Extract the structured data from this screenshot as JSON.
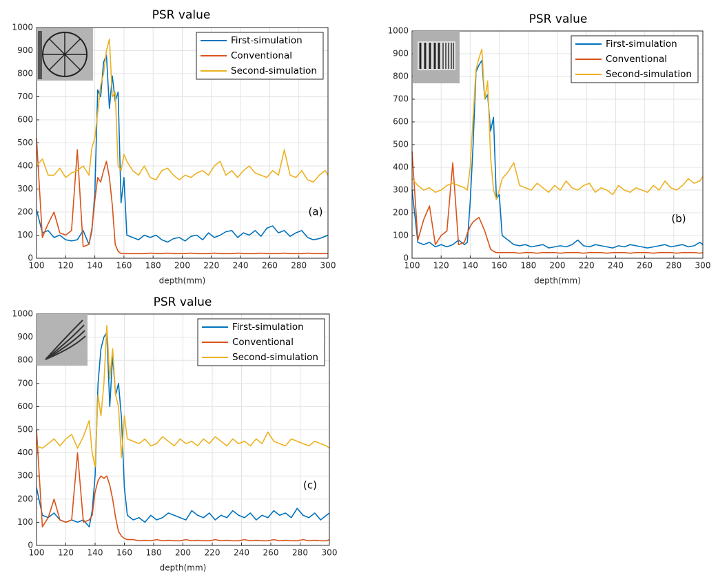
{
  "chart_data": [
    {
      "type": "line",
      "title": "PSR value",
      "xlabel": "depth(mm)",
      "annotation": "(a)",
      "x": [
        100,
        104,
        108,
        112,
        116,
        120,
        124,
        128,
        132,
        136,
        138,
        140,
        142,
        144,
        146,
        148,
        150,
        152,
        154,
        156,
        158,
        160,
        162,
        166,
        170,
        174,
        178,
        182,
        186,
        190,
        194,
        198,
        202,
        206,
        210,
        214,
        218,
        222,
        226,
        230,
        234,
        238,
        242,
        246,
        250,
        254,
        258,
        262,
        266,
        270,
        274,
        278,
        282,
        286,
        290,
        294,
        298,
        300
      ],
      "series": [
        {
          "name": "First-simulation",
          "color": "#0072BD",
          "values": [
            210,
            110,
            120,
            90,
            100,
            80,
            75,
            80,
            120,
            60,
            120,
            280,
            730,
            700,
            850,
            880,
            650,
            790,
            680,
            720,
            240,
            350,
            100,
            90,
            80,
            100,
            90,
            100,
            80,
            70,
            85,
            90,
            75,
            95,
            100,
            80,
            110,
            90,
            100,
            115,
            120,
            90,
            110,
            100,
            120,
            95,
            130,
            140,
            110,
            120,
            95,
            110,
            120,
            90,
            80,
            85,
            95,
            100
          ]
        },
        {
          "name": "Conventional",
          "color": "#D95319",
          "values": [
            520,
            90,
            150,
            200,
            110,
            100,
            120,
            470,
            50,
            60,
            130,
            250,
            350,
            330,
            380,
            420,
            350,
            230,
            60,
            30,
            20,
            20,
            20,
            20,
            20,
            20,
            22,
            20,
            20,
            22,
            20,
            20,
            20,
            22,
            20,
            20,
            20,
            22,
            20,
            20,
            20,
            22,
            20,
            20,
            20,
            22,
            20,
            20,
            20,
            22,
            20,
            20,
            20,
            22,
            20,
            20,
            20,
            20
          ]
        },
        {
          "name": "Second-simulation",
          "color": "#EDB120",
          "values": [
            400,
            430,
            360,
            360,
            390,
            350,
            370,
            380,
            400,
            360,
            480,
            520,
            630,
            750,
            800,
            900,
            950,
            700,
            720,
            400,
            380,
            450,
            420,
            380,
            360,
            400,
            350,
            340,
            380,
            390,
            360,
            340,
            360,
            350,
            370,
            380,
            360,
            400,
            420,
            360,
            380,
            350,
            380,
            400,
            370,
            360,
            350,
            380,
            360,
            470,
            360,
            350,
            380,
            340,
            330,
            360,
            380,
            360
          ]
        }
      ],
      "xlim": [
        100,
        300
      ],
      "ylim": [
        0,
        1000
      ],
      "xticks": [
        100,
        120,
        140,
        160,
        180,
        200,
        220,
        240,
        260,
        280,
        300
      ],
      "yticks": [
        0,
        100,
        200,
        300,
        400,
        500,
        600,
        700,
        800,
        900,
        1000
      ],
      "grid": true,
      "legend": "upper-right"
    },
    {
      "type": "line",
      "title": "PSR value",
      "xlabel": "depth(mm)",
      "annotation": "(b)",
      "x": [
        100,
        104,
        108,
        112,
        116,
        120,
        124,
        128,
        132,
        136,
        138,
        140,
        142,
        144,
        146,
        148,
        150,
        152,
        154,
        156,
        158,
        160,
        162,
        166,
        170,
        174,
        178,
        182,
        186,
        190,
        194,
        198,
        202,
        206,
        210,
        214,
        218,
        222,
        226,
        230,
        234,
        238,
        242,
        246,
        250,
        254,
        258,
        262,
        266,
        270,
        274,
        278,
        282,
        286,
        290,
        294,
        298,
        300
      ],
      "series": [
        {
          "name": "First-simulation",
          "color": "#0072BD",
          "values": [
            300,
            70,
            60,
            70,
            50,
            60,
            50,
            60,
            80,
            60,
            70,
            250,
            500,
            820,
            850,
            870,
            700,
            720,
            560,
            620,
            260,
            280,
            100,
            80,
            60,
            55,
            60,
            50,
            55,
            60,
            45,
            50,
            55,
            50,
            60,
            80,
            55,
            50,
            60,
            55,
            50,
            45,
            55,
            50,
            60,
            55,
            50,
            45,
            50,
            55,
            60,
            50,
            55,
            60,
            50,
            55,
            70,
            60
          ]
        },
        {
          "name": "Conventional",
          "color": "#D95319",
          "values": [
            470,
            80,
            170,
            230,
            60,
            100,
            120,
            420,
            60,
            70,
            110,
            140,
            160,
            170,
            180,
            150,
            120,
            80,
            40,
            30,
            25,
            25,
            25,
            25,
            25,
            22,
            25,
            25,
            22,
            25,
            25,
            25,
            22,
            25,
            25,
            25,
            22,
            25,
            25,
            25,
            22,
            25,
            25,
            25,
            22,
            25,
            25,
            25,
            22,
            25,
            25,
            25,
            22,
            25,
            25,
            25,
            22,
            25
          ]
        },
        {
          "name": "Second-simulation",
          "color": "#EDB120",
          "values": [
            350,
            320,
            300,
            310,
            290,
            300,
            320,
            330,
            320,
            310,
            300,
            400,
            620,
            830,
            880,
            920,
            700,
            780,
            450,
            300,
            260,
            300,
            350,
            380,
            420,
            320,
            310,
            300,
            330,
            310,
            290,
            320,
            300,
            340,
            310,
            300,
            320,
            330,
            290,
            310,
            300,
            280,
            320,
            300,
            290,
            310,
            300,
            290,
            320,
            300,
            340,
            310,
            300,
            320,
            350,
            330,
            340,
            360
          ]
        }
      ],
      "xlim": [
        100,
        300
      ],
      "ylim": [
        0,
        1000
      ],
      "xticks": [
        100,
        120,
        140,
        160,
        180,
        200,
        220,
        240,
        260,
        280,
        300
      ],
      "yticks": [
        0,
        100,
        200,
        300,
        400,
        500,
        600,
        700,
        800,
        900,
        1000
      ],
      "grid": true,
      "legend": "upper-right"
    },
    {
      "type": "line",
      "title": "PSR value",
      "xlabel": "depth(mm)",
      "annotation": "(c)",
      "x": [
        100,
        104,
        108,
        112,
        116,
        120,
        124,
        128,
        132,
        136,
        138,
        140,
        142,
        144,
        146,
        148,
        150,
        152,
        154,
        156,
        158,
        160,
        162,
        166,
        170,
        174,
        178,
        182,
        186,
        190,
        194,
        198,
        202,
        206,
        210,
        214,
        218,
        222,
        226,
        230,
        234,
        238,
        242,
        246,
        250,
        254,
        258,
        262,
        266,
        270,
        274,
        278,
        282,
        286,
        290,
        294,
        298,
        300
      ],
      "series": [
        {
          "name": "First-simulation",
          "color": "#0072BD",
          "values": [
            250,
            130,
            120,
            140,
            110,
            100,
            110,
            100,
            110,
            80,
            150,
            300,
            700,
            850,
            900,
            920,
            600,
            820,
            650,
            700,
            550,
            250,
            130,
            110,
            120,
            100,
            130,
            110,
            120,
            140,
            130,
            120,
            110,
            150,
            130,
            120,
            140,
            110,
            130,
            120,
            150,
            130,
            120,
            140,
            110,
            130,
            120,
            150,
            130,
            140,
            120,
            160,
            130,
            120,
            140,
            110,
            130,
            140
          ]
        },
        {
          "name": "Conventional",
          "color": "#D95319",
          "values": [
            500,
            80,
            120,
            200,
            110,
            100,
            110,
            400,
            100,
            110,
            130,
            230,
            280,
            300,
            290,
            300,
            260,
            200,
            120,
            60,
            40,
            30,
            25,
            25,
            20,
            22,
            20,
            25,
            20,
            22,
            20,
            20,
            25,
            20,
            22,
            20,
            20,
            25,
            20,
            22,
            20,
            20,
            25,
            20,
            22,
            20,
            20,
            25,
            20,
            22,
            20,
            20,
            25,
            20,
            22,
            20,
            20,
            25
          ]
        },
        {
          "name": "Second-simulation",
          "color": "#EDB120",
          "values": [
            430,
            420,
            440,
            460,
            430,
            460,
            480,
            420,
            470,
            540,
            400,
            340,
            650,
            560,
            700,
            950,
            720,
            850,
            650,
            600,
            380,
            560,
            460,
            450,
            440,
            460,
            430,
            440,
            470,
            450,
            430,
            460,
            440,
            450,
            430,
            460,
            440,
            470,
            450,
            430,
            460,
            440,
            450,
            430,
            460,
            440,
            490,
            450,
            440,
            430,
            460,
            450,
            440,
            430,
            450,
            440,
            430,
            420
          ]
        }
      ],
      "xlim": [
        100,
        300
      ],
      "ylim": [
        0,
        1000
      ],
      "xticks": [
        100,
        120,
        140,
        160,
        180,
        200,
        220,
        240,
        260,
        280,
        300
      ],
      "yticks": [
        0,
        100,
        200,
        300,
        400,
        500,
        600,
        700,
        800,
        900,
        1000
      ],
      "grid": true,
      "legend": "upper-right"
    }
  ]
}
